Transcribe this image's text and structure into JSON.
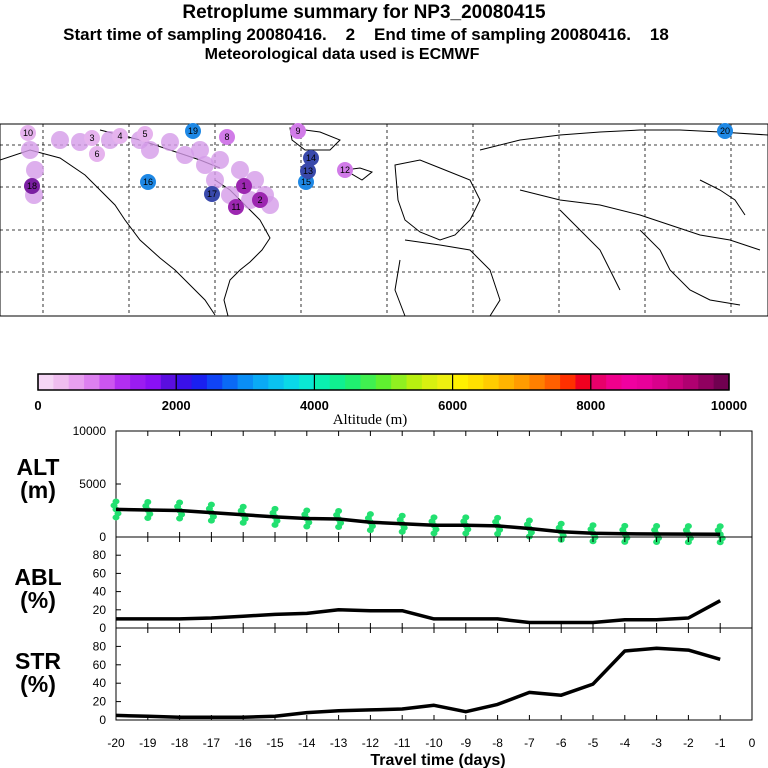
{
  "header": {
    "title": "Retroplume summary for NP3_20080415",
    "sampling": "Start time of sampling 20080416.    2    End time of sampling 20080416.    18",
    "met": "Meteorological data used is ECMWF"
  },
  "colorbar": {
    "ticks": [
      "0",
      "2000",
      "4000",
      "6000",
      "8000",
      "10000"
    ],
    "label": "Altitude (m)",
    "colors": [
      "#f5d6f5",
      "#efbdef",
      "#e8a0f0",
      "#dd80f0",
      "#cc55f0",
      "#b22ef2",
      "#9b1cf2",
      "#8a10f5",
      "#5a0ee0",
      "#3a10ea",
      "#1a20f0",
      "#1044f5",
      "#0a6af5",
      "#0a8ef5",
      "#0aaaf5",
      "#0ac2f0",
      "#0ad8e8",
      "#0ae8d4",
      "#0af0b0",
      "#10f090",
      "#20f070",
      "#40f050",
      "#60f030",
      "#90f020",
      "#b8f010",
      "#d8f010",
      "#eef010",
      "#fff000",
      "#ffe000",
      "#ffcc00",
      "#ffb400",
      "#ff9c00",
      "#ff8000",
      "#ff6000",
      "#ff3000",
      "#f00020",
      "#e8006a",
      "#f0008c",
      "#f000a0",
      "#e8009a",
      "#d8008c",
      "#c8007c",
      "#b00070",
      "#900060",
      "#700050"
    ]
  },
  "map": {
    "markers": [
      {
        "label": "19",
        "color": "#1e88e5"
      },
      {
        "label": "20",
        "color": "#1e88e5"
      },
      {
        "label": "18",
        "color": "#7b1fa2"
      },
      {
        "label": "17",
        "color": "#3949ab"
      },
      {
        "label": "16",
        "color": "#1e88e5"
      },
      {
        "label": "15",
        "color": "#1e88e5"
      },
      {
        "label": "14",
        "color": "#3949ab"
      },
      {
        "label": "13",
        "color": "#3949ab"
      },
      {
        "label": "12",
        "color": "#d17be8"
      },
      {
        "label": "11",
        "color": "#9c27b0"
      },
      {
        "label": "10",
        "color": "#e6b3ee"
      },
      {
        "label": "9",
        "color": "#d17be8"
      },
      {
        "label": "8",
        "color": "#d17be8"
      },
      {
        "label": "6",
        "color": "#e6b3ee"
      },
      {
        "label": "5",
        "color": "#e6b3ee"
      },
      {
        "label": "4",
        "color": "#e6b3ee"
      },
      {
        "label": "3",
        "color": "#e6b3ee"
      },
      {
        "label": "2",
        "color": "#9c27b0"
      },
      {
        "label": "1",
        "color": "#9c27b0"
      }
    ]
  },
  "panels": {
    "alt": {
      "label_top": "ALT",
      "label_bottom": "(m)"
    },
    "abl": {
      "label_top": "ABL",
      "label_bottom": "(%)"
    },
    "str": {
      "label_top": "STR",
      "label_bottom": "(%)"
    }
  },
  "chart_data": [
    {
      "type": "line",
      "title": "ALT (m)",
      "x": [
        -20,
        -19,
        -18,
        -17,
        -16,
        -15,
        -14,
        -13,
        -12,
        -11,
        -10,
        -9,
        -8,
        -7,
        -6,
        -5,
        -4,
        -3,
        -2,
        -1
      ],
      "y": [
        2600,
        2550,
        2500,
        2300,
        2100,
        1900,
        1750,
        1700,
        1400,
        1250,
        1100,
        1100,
        1050,
        800,
        500,
        350,
        300,
        280,
        270,
        260
      ],
      "ylim": [
        0,
        10000
      ],
      "yticks": [
        "0",
        "5000",
        "10000"
      ],
      "scatter_color": "#22e070"
    },
    {
      "type": "line",
      "title": "ABL (%)",
      "x": [
        -20,
        -19,
        -18,
        -17,
        -16,
        -15,
        -14,
        -13,
        -12,
        -11,
        -10,
        -9,
        -8,
        -7,
        -6,
        -5,
        -4,
        -3,
        -2,
        -1
      ],
      "y": [
        10,
        10,
        10,
        11,
        13,
        15,
        16,
        20,
        19,
        19,
        10,
        10,
        10,
        6,
        6,
        6,
        9,
        9,
        11,
        30
      ],
      "ylim": [
        0,
        100
      ],
      "yticks": [
        "0",
        "20",
        "40",
        "60",
        "80"
      ]
    },
    {
      "type": "line",
      "title": "STR (%)",
      "x": [
        -20,
        -19,
        -18,
        -17,
        -16,
        -15,
        -14,
        -13,
        -12,
        -11,
        -10,
        -9,
        -8,
        -7,
        -6,
        -5,
        -4,
        -3,
        -2,
        -1
      ],
      "y": [
        5,
        4,
        3,
        3,
        3,
        4,
        8,
        10,
        11,
        12,
        16,
        9,
        17,
        30,
        27,
        39,
        75,
        78,
        76,
        66
      ],
      "ylim": [
        0,
        100
      ],
      "yticks": [
        "0",
        "20",
        "40",
        "60",
        "80"
      ],
      "xlabel": "Travel time (days)",
      "xticklabels": [
        "-20",
        "-19",
        "-18",
        "-17",
        "-16",
        "-15",
        "-14",
        "-13",
        "-12",
        "-11",
        "-10",
        "-9",
        "-8",
        "-7",
        "-6",
        "-5",
        "-4",
        "-3",
        "-2",
        "-1",
        "0"
      ]
    }
  ]
}
